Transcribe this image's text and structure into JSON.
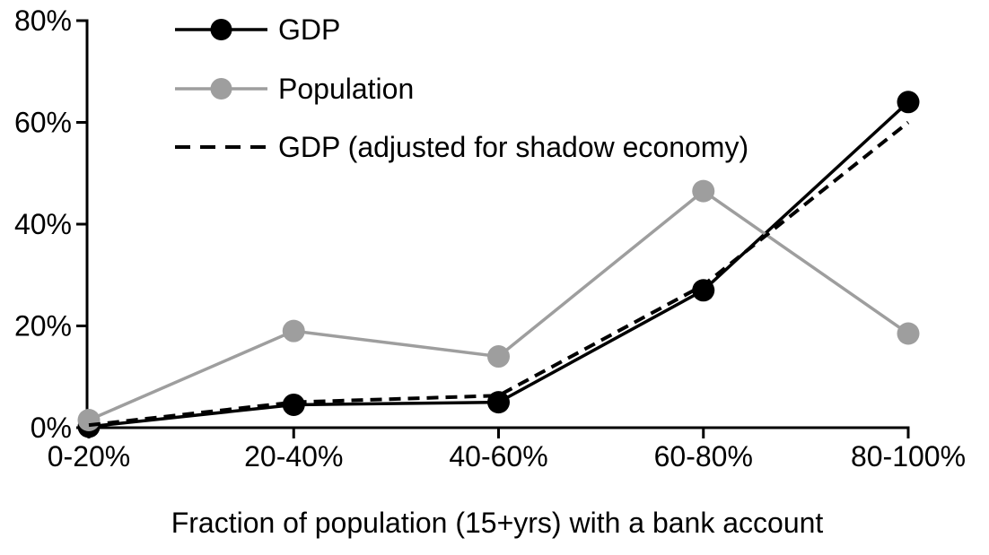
{
  "chart_data": {
    "type": "line",
    "title": "",
    "xlabel": "Fraction of population (15+yrs) with a bank account",
    "ylabel": "",
    "categories": [
      "0-20%",
      "20-40%",
      "40-60%",
      "60-80%",
      "80-100%"
    ],
    "series": [
      {
        "name": "GDP",
        "color": "#000000",
        "line_style": "solid",
        "marker": "circle",
        "values": [
          0.2,
          4.5,
          5,
          27,
          64
        ]
      },
      {
        "name": "Population",
        "color": "#9e9e9e",
        "line_style": "solid",
        "marker": "circle",
        "values": [
          1.5,
          19,
          14,
          46.5,
          18.5
        ]
      },
      {
        "name": "GDP (adjusted for shadow economy)",
        "color": "#000000",
        "line_style": "dashed",
        "marker": "none",
        "values": [
          0.5,
          5,
          6.3,
          28,
          60
        ]
      }
    ],
    "ylim": [
      0,
      80
    ],
    "ytick_values": [
      0,
      20,
      40,
      60,
      80
    ],
    "ytick_labels": [
      "0%",
      "20%",
      "40%",
      "60%",
      "80%"
    ],
    "xtick_labels": [
      "0-20%",
      "20-40%",
      "40-60%",
      "60-80%",
      "80-100%"
    ],
    "grid": "off",
    "legend_position": "top-left",
    "colors": {
      "background": "#ffffff",
      "axis": "#000000",
      "text": "#000000",
      "gdp": "#000000",
      "population": "#9e9e9e"
    }
  }
}
